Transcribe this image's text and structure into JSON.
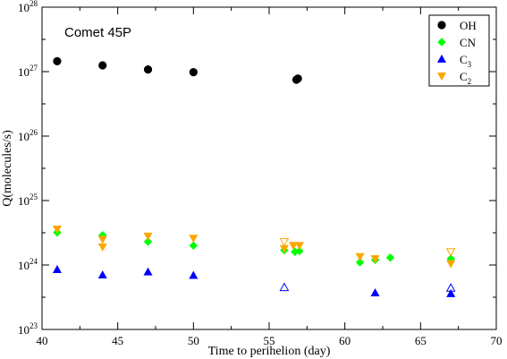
{
  "chart_data": {
    "type": "scatter",
    "title": "",
    "annotation": "Comet 45P",
    "xlabel": "Time to perihelion (day)",
    "ylabel": "Q(molecules/s)",
    "xlim": [
      40,
      70
    ],
    "ylim": [
      1e+23,
      1e+28
    ],
    "xscale": "linear",
    "yscale": "log",
    "x_ticks": [
      {
        "value": 40,
        "label": "40"
      },
      {
        "value": 45,
        "label": "45"
      },
      {
        "value": 50,
        "label": "50"
      },
      {
        "value": 55,
        "label": "55"
      },
      {
        "value": 60,
        "label": "60"
      },
      {
        "value": 65,
        "label": "65"
      },
      {
        "value": 70,
        "label": "70"
      }
    ],
    "y_ticks": [
      {
        "value": 1e+23,
        "base": "10",
        "exp": "23"
      },
      {
        "value": 1e+24,
        "base": "10",
        "exp": "24"
      },
      {
        "value": 1e+25,
        "base": "10",
        "exp": "25"
      },
      {
        "value": 1e+26,
        "base": "10",
        "exp": "26"
      },
      {
        "value": 1e+27,
        "base": "10",
        "exp": "27"
      },
      {
        "value": 1e+28,
        "base": "10",
        "exp": "28"
      }
    ],
    "grid": false,
    "legend_position": "top-right",
    "series": [
      {
        "name": "OH",
        "name_main": "OH",
        "name_sub": "",
        "marker": "circle",
        "color": "#000000",
        "points": [
          {
            "x": 41.0,
            "y": 1.45e+27,
            "open": false
          },
          {
            "x": 44.0,
            "y": 1.25e+27,
            "open": false
          },
          {
            "x": 47.0,
            "y": 1.08e+27,
            "open": false
          },
          {
            "x": 50.0,
            "y": 9.8e+26,
            "open": false
          },
          {
            "x": 56.8,
            "y": 7.5e+26,
            "open": false
          },
          {
            "x": 56.9,
            "y": 7.8e+26,
            "open": false
          }
        ]
      },
      {
        "name": "CN",
        "name_main": "CN",
        "name_sub": "",
        "marker": "diamond",
        "color": "#00ff00",
        "points": [
          {
            "x": 41.0,
            "y": 3.2e+24,
            "open": false
          },
          {
            "x": 44.0,
            "y": 2.9e+24,
            "open": false
          },
          {
            "x": 47.0,
            "y": 2.3e+24,
            "open": false
          },
          {
            "x": 50.0,
            "y": 2e+24,
            "open": false
          },
          {
            "x": 56.0,
            "y": 1.7e+24,
            "open": false
          },
          {
            "x": 56.7,
            "y": 1.6e+24,
            "open": false
          },
          {
            "x": 57.0,
            "y": 1.65e+24,
            "open": false
          },
          {
            "x": 61.0,
            "y": 1.1e+24,
            "open": false
          },
          {
            "x": 62.0,
            "y": 1.2e+24,
            "open": false
          },
          {
            "x": 63.0,
            "y": 1.3e+24,
            "open": false
          },
          {
            "x": 67.0,
            "y": 1.25e+24,
            "open": false
          }
        ]
      },
      {
        "name": "C3",
        "name_main": "C",
        "name_sub": "3",
        "marker": "triangle-up",
        "color": "#0000ff",
        "points": [
          {
            "x": 41.0,
            "y": 8.5e+23,
            "open": false
          },
          {
            "x": 44.0,
            "y": 7e+23,
            "open": false
          },
          {
            "x": 47.0,
            "y": 7.8e+23,
            "open": false
          },
          {
            "x": 50.0,
            "y": 6.9e+23,
            "open": false
          },
          {
            "x": 56.0,
            "y": 4.5e+23,
            "open": true
          },
          {
            "x": 62.0,
            "y": 3.7e+23,
            "open": false
          },
          {
            "x": 67.0,
            "y": 3.6e+23,
            "open": false
          },
          {
            "x": 67.0,
            "y": 4.4e+23,
            "open": true
          }
        ]
      },
      {
        "name": "C2",
        "name_main": "C",
        "name_sub": "2",
        "marker": "triangle-down",
        "color": "#ffa500",
        "points": [
          {
            "x": 41.0,
            "y": 3.6e+24,
            "open": false
          },
          {
            "x": 44.0,
            "y": 2.5e+24,
            "open": false
          },
          {
            "x": 44.0,
            "y": 1.9e+24,
            "open": false
          },
          {
            "x": 47.0,
            "y": 2.8e+24,
            "open": false
          },
          {
            "x": 50.0,
            "y": 2.6e+24,
            "open": false
          },
          {
            "x": 56.0,
            "y": 2.3e+24,
            "open": true
          },
          {
            "x": 56.0,
            "y": 1.8e+24,
            "open": false
          },
          {
            "x": 56.6,
            "y": 2e+24,
            "open": false
          },
          {
            "x": 57.0,
            "y": 2e+24,
            "open": false
          },
          {
            "x": 61.0,
            "y": 1.35e+24,
            "open": false
          },
          {
            "x": 62.0,
            "y": 1.25e+24,
            "open": false
          },
          {
            "x": 67.0,
            "y": 1.6e+24,
            "open": true
          },
          {
            "x": 67.0,
            "y": 1.05e+24,
            "open": false
          }
        ]
      }
    ]
  }
}
